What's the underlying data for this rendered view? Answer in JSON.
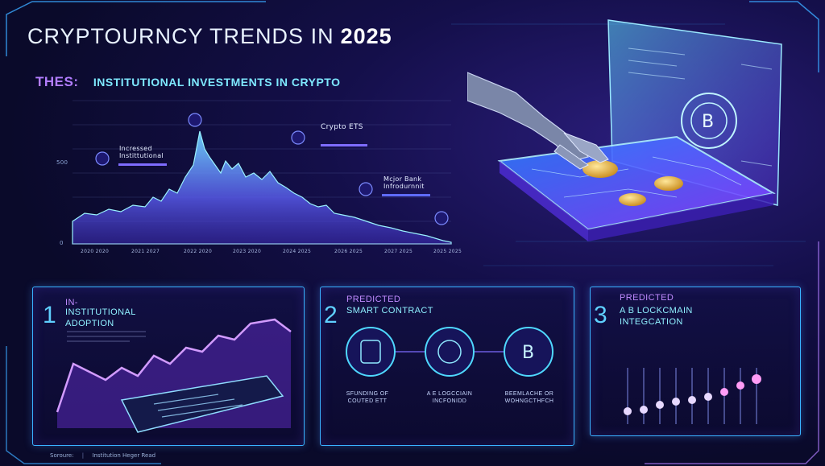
{
  "title": {
    "main": "CRYPTOURNCY TRENDS IN",
    "year": "2025"
  },
  "theme": {
    "label": "THES:",
    "value": "INSTITUTIONAL INVESTMENTS IN CRYPTO"
  },
  "top_chart": {
    "y_ticks": [
      "500",
      "0"
    ],
    "x_ticks": [
      "2020 2020",
      "2021 2027",
      "2022 2020",
      "2023 2020",
      "2024 2025",
      "2026 2025",
      "2027 2025",
      "2025 2025"
    ],
    "annotations": [
      {
        "label": "Incressed Instittutional",
        "sub": ""
      },
      {
        "label": "Crypto ETS",
        "sub": ""
      },
      {
        "label": "Mcjor Bank Infrodurnnit",
        "sub": ""
      }
    ]
  },
  "panels": [
    {
      "number": "1",
      "tag": "IN-",
      "title_line1": "INSTITUTIONAL",
      "title_line2": "ADOPTION"
    },
    {
      "number": "2",
      "tag": "PREDICTED",
      "title_line1": "SMART CONTRACT",
      "title_line2": "",
      "captions": [
        "SFUNDING OF COUTED ETT",
        "A E LOGCCIAIN INCFONIDD",
        "BEEMLACHE OR WOHNGCTHFCH"
      ]
    },
    {
      "number": "3",
      "tag": "PREDICTED",
      "title_line1": "A B LOCKCMAIN",
      "title_line2": "INTEGCATION"
    }
  ],
  "footer": {
    "source": "Soroure:",
    "text": "Institution Heger Read"
  },
  "colors": {
    "accent_cyan": "#39b3ff",
    "accent_violet": "#b27dff",
    "bg": "#0b0a2a"
  }
}
